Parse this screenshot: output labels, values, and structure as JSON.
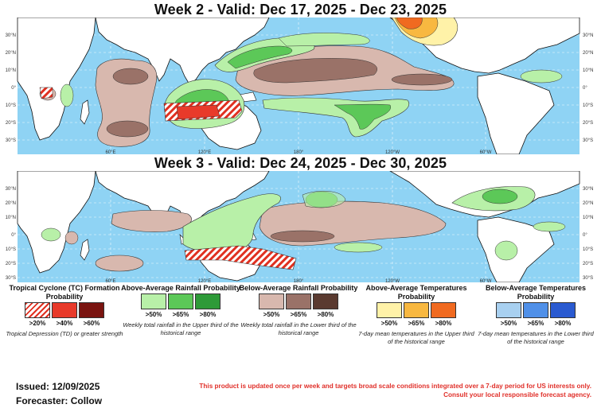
{
  "week2": {
    "title": "Week 2 - Valid: Dec 17, 2025 - Dec 23, 2025"
  },
  "week3": {
    "title": "Week 3 - Valid: Dec 24, 2025 - Dec 30, 2025"
  },
  "axes": {
    "lat_labels": [
      "30°N",
      "20°N",
      "10°N",
      "0°",
      "10°S",
      "20°S",
      "30°S"
    ],
    "lon_labels": [
      "60°E",
      "120°E",
      "180°",
      "120°W",
      "60°W"
    ]
  },
  "legend": {
    "tc": {
      "title": "Tropical Cyclone (TC) Formation Probability",
      "labels": [
        ">20%",
        ">40%",
        ">60%"
      ],
      "note": "Tropical Depression (TD) or greater strength",
      "colors": [
        "#e03020",
        "#e83a2a",
        "#7a1410"
      ]
    },
    "above_rain": {
      "title": "Above-Average Rainfall Probability",
      "labels": [
        ">50%",
        ">65%",
        ">80%"
      ],
      "note": "Weekly total rainfall in the Upper third of the historical range",
      "colors": [
        "#b8f0a8",
        "#5cc858",
        "#2e9a38"
      ]
    },
    "below_rain": {
      "title": "Below-Average Rainfall Probability",
      "labels": [
        ">50%",
        ">65%",
        ">80%"
      ],
      "note": "Weekly total rainfall in the Lower third of the historical range",
      "colors": [
        "#d8b8ae",
        "#9a7268",
        "#5a3a30"
      ]
    },
    "above_temp": {
      "title": "Above-Average Temperatures Probability",
      "labels": [
        ">50%",
        ">65%",
        ">80%"
      ],
      "note": "7-day mean temperatures in the Upper third of the historical range",
      "colors": [
        "#fff2a8",
        "#f8b840",
        "#f06a20"
      ]
    },
    "below_temp": {
      "title": "Below-Average Temperatures Probability",
      "labels": [
        ">50%",
        ">65%",
        ">80%"
      ],
      "note": "7-day mean temperatures in the Lower third of the historical range",
      "colors": [
        "#a8d0f0",
        "#5090e8",
        "#2a5ad0"
      ]
    }
  },
  "footer": {
    "issued": "Issued: 12/09/2025",
    "forecaster": "Forecaster: Collow",
    "disclaimer_1": "This product is updated once per week and targets broad scale conditions integrated over a 7-day period for US interests only.",
    "disclaimer_2": "Consult your local responsible forecast agency."
  },
  "colors": {
    "ocean": "#8fd3f4",
    "land": "#ffffff"
  }
}
